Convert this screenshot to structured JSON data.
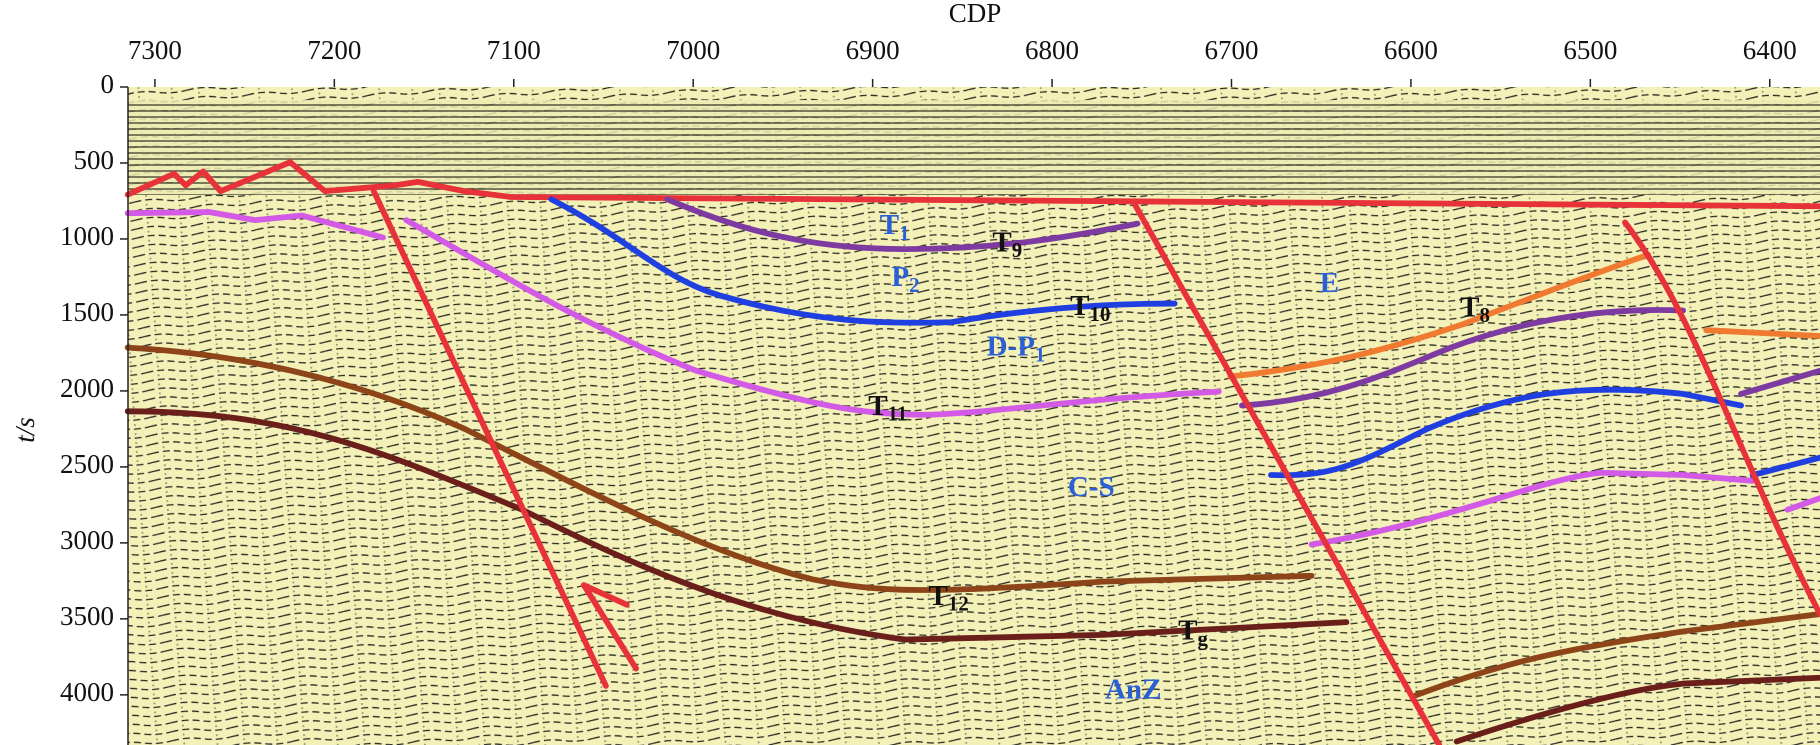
{
  "chart_data": {
    "type": "seismic-section",
    "xlabel": "CDP",
    "ylabel": "t/s",
    "xlim": [
      7315,
      6372
    ],
    "xticks": [
      7300,
      7200,
      7100,
      7000,
      6900,
      6800,
      6700,
      6600,
      6500,
      6400
    ],
    "ylim": [
      0,
      4330
    ],
    "yticks": [
      0,
      500,
      1000,
      1500,
      2000,
      2500,
      3000,
      3500,
      4000
    ],
    "annotations": [
      {
        "base": "T",
        "sub": "1"
      },
      {
        "base": "T",
        "sub": "9"
      },
      {
        "base": "P",
        "sub": "2"
      },
      {
        "base": "T",
        "sub": "10"
      },
      {
        "base": "E"
      },
      {
        "base": "T",
        "sub": "8"
      },
      {
        "base": "D-P",
        "sub": "1"
      },
      {
        "base": "T",
        "sub": "11"
      },
      {
        "base": "C-S"
      },
      {
        "base": "T",
        "sub": "12"
      },
      {
        "base": "T",
        "sub": "g"
      },
      {
        "base": "AnZ"
      }
    ]
  }
}
